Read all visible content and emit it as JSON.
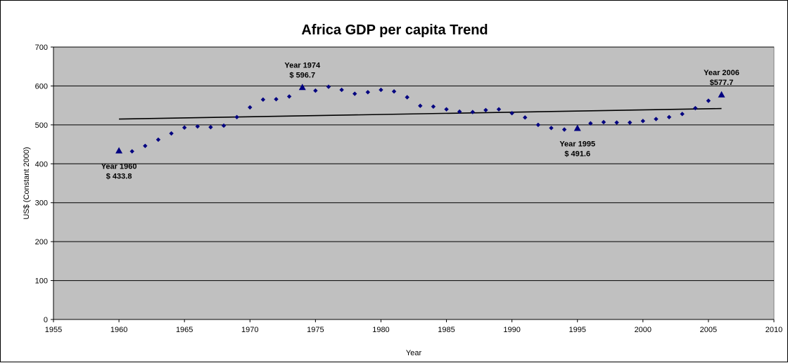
{
  "chart_data": {
    "type": "scatter",
    "title": "Africa GDP per capita Trend",
    "xlabel": "Year",
    "ylabel": "US$ (Constant 2000)",
    "xlim": [
      1955,
      2010
    ],
    "ylim": [
      0,
      700
    ],
    "x_ticks": [
      1955,
      1960,
      1965,
      1970,
      1975,
      1980,
      1985,
      1990,
      1995,
      2000,
      2005,
      2010
    ],
    "y_ticks": [
      0,
      100,
      200,
      300,
      400,
      500,
      600,
      700
    ],
    "grid": "horizontal",
    "plot_background": "#c0c0c0",
    "marker_color": "#000080",
    "series": [
      {
        "marker": "diamond",
        "x": [
          1961,
          1962,
          1963,
          1964,
          1965,
          1966,
          1967,
          1968,
          1969,
          1970,
          1971,
          1972,
          1973,
          1975,
          1976,
          1977,
          1978,
          1979,
          1980,
          1981,
          1982,
          1983,
          1984,
          1985,
          1986,
          1987,
          1988,
          1989,
          1990,
          1991,
          1992,
          1993,
          1994,
          1996,
          1997,
          1998,
          1999,
          2000,
          2001,
          2002,
          2003,
          2004,
          2005
        ],
        "y": [
          432,
          446,
          462,
          478,
          493,
          496,
          494,
          498,
          520,
          545,
          565,
          566,
          573,
          588,
          598,
          590,
          580,
          584,
          590,
          586,
          571,
          549,
          547,
          540,
          534,
          533,
          538,
          540,
          530,
          519,
          500,
          492,
          488,
          504,
          507,
          506,
          506,
          510,
          515,
          520,
          528,
          543,
          562
        ]
      },
      {
        "marker": "triangle",
        "x": [
          1960,
          1974,
          1995,
          2006
        ],
        "y": [
          433.8,
          596.7,
          491.6,
          577.7
        ]
      }
    ],
    "trendline": {
      "x": [
        1960,
        2006
      ],
      "y": [
        515,
        542
      ]
    },
    "annotations": [
      {
        "line1": "Year 1960",
        "line2": "$ 433.8",
        "x": 1960,
        "y": 433.8,
        "position": "below"
      },
      {
        "line1": "Year 1974",
        "line2": "$ 596.7",
        "x": 1974,
        "y": 596.7,
        "position": "above"
      },
      {
        "line1": "Year 1995",
        "line2": "$ 491.6",
        "x": 1995,
        "y": 491.6,
        "position": "below"
      },
      {
        "line1": "Year 2006",
        "line2": "$577.7",
        "x": 2006,
        "y": 577.7,
        "position": "above"
      }
    ]
  }
}
